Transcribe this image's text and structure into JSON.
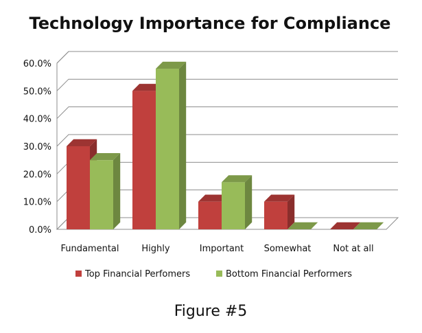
{
  "chart_data": {
    "type": "bar",
    "title": "Technology Importance for Compliance",
    "categories": [
      "Fundamental",
      "Highly",
      "Important",
      "Somewhat",
      "Not at all"
    ],
    "series": [
      {
        "name": "Top Financial Perfomers",
        "values": [
          30,
          50,
          10,
          10,
          0
        ],
        "color": "#c0403d"
      },
      {
        "name": "Bottom Financial Performers",
        "values": [
          25,
          58,
          17,
          0,
          0
        ],
        "color": "#98bb59"
      }
    ],
    "y_ticks": [
      "0.0%",
      "10.0%",
      "20.0%",
      "30.0%",
      "40.0%",
      "50.0%",
      "60.0%"
    ],
    "ylim": [
      0,
      60
    ],
    "value_format": "percent",
    "grid": true,
    "legend_position": "bottom",
    "style": "3d-clustered-column"
  },
  "caption": "Figure #5"
}
